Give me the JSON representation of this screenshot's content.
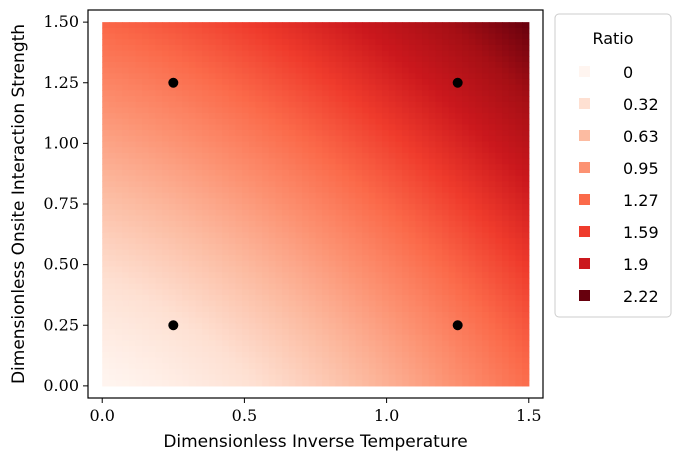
{
  "chart_data": {
    "type": "heatmap",
    "title": "",
    "xlabel": "Dimensionless Inverse Temperature",
    "ylabel": "Dimensionless Onsite Interaction Strength",
    "xlim": [
      -0.05,
      1.55
    ],
    "ylim": [
      -0.05,
      1.55
    ],
    "x_domain": [
      0.0,
      1.5
    ],
    "y_domain": [
      0.0,
      1.5
    ],
    "x_ticks": [
      0.0,
      0.5,
      1.0,
      1.5
    ],
    "x_tick_labels": [
      "0.0",
      "0.5",
      "1.0",
      "1.5"
    ],
    "y_ticks": [
      0.0,
      0.25,
      0.5,
      0.75,
      1.0,
      1.25,
      1.5
    ],
    "y_tick_labels": [
      "0.00",
      "0.25",
      "0.50",
      "0.75",
      "1.00",
      "1.25",
      "1.50"
    ],
    "colormap": "Reds",
    "value_range": [
      0,
      2.22
    ],
    "corner_values": {
      "x0_y0": 0.0,
      "x1.5_y0": 1.1,
      "x0_y1.5": 1.15,
      "x1.5_y1.5": 2.22
    },
    "grid": false,
    "legend": {
      "title": "Ratio",
      "placement": "right",
      "entries": [
        {
          "label": "0",
          "color": "#fff5f0"
        },
        {
          "label": "0.32",
          "color": "#fee0d2"
        },
        {
          "label": "0.63",
          "color": "#fcbba1"
        },
        {
          "label": "0.95",
          "color": "#fc9272"
        },
        {
          "label": "1.27",
          "color": "#fb6a4a"
        },
        {
          "label": "1.59",
          "color": "#ef3b2c"
        },
        {
          "label": "1.9",
          "color": "#cb181d"
        },
        {
          "label": "2.22",
          "color": "#67000d"
        }
      ]
    },
    "points": [
      {
        "x": 0.25,
        "y": 1.25
      },
      {
        "x": 1.25,
        "y": 1.25
      },
      {
        "x": 0.25,
        "y": 0.25
      },
      {
        "x": 1.25,
        "y": 0.25
      }
    ],
    "point_color": "#000000"
  }
}
